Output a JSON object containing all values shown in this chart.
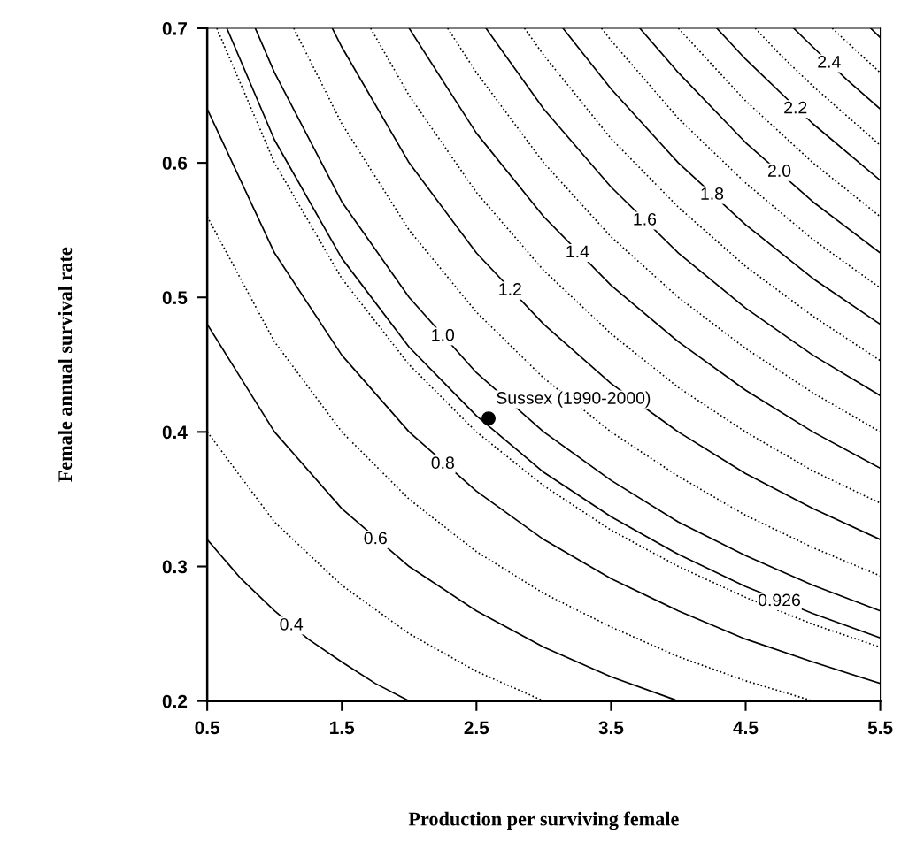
{
  "chart_data": {
    "type": "line",
    "xlabel": "Production per surviving female",
    "ylabel": "Female annual survival rate",
    "xlim": [
      0.5,
      5.5
    ],
    "xticks": [
      0.5,
      1.5,
      2.5,
      3.5,
      4.5,
      5.5
    ],
    "ylim": [
      0.2,
      0.7
    ],
    "yticks": [
      0.2,
      0.3,
      0.4,
      0.5,
      0.6,
      0.7
    ],
    "grid": false,
    "series": [
      {
        "color": "#000000",
        "line_style": "solid",
        "x": [
          0.5,
          0.75,
          1,
          1.25,
          1.5,
          1.75,
          2
        ],
        "values": [
          0.32,
          0.291,
          0.267,
          0.246,
          0.229,
          0.213,
          0.2
        ]
      },
      {
        "color": "#000000",
        "line_style": "dotted",
        "x": [
          0.5,
          1,
          1.5,
          2,
          2.5,
          3
        ],
        "values": [
          0.4,
          0.333,
          0.286,
          0.25,
          0.222,
          0.2
        ]
      },
      {
        "color": "#000000",
        "line_style": "solid",
        "x": [
          0.5,
          1,
          1.5,
          2,
          2.5,
          3,
          3.5,
          4
        ],
        "values": [
          0.48,
          0.4,
          0.343,
          0.3,
          0.267,
          0.24,
          0.218,
          0.2
        ]
      },
      {
        "color": "#000000",
        "line_style": "dotted",
        "x": [
          0.5,
          1,
          1.5,
          2,
          2.5,
          3,
          3.5,
          4,
          4.5,
          5
        ],
        "values": [
          0.56,
          0.467,
          0.4,
          0.35,
          0.311,
          0.28,
          0.255,
          0.233,
          0.215,
          0.2
        ]
      },
      {
        "color": "#000000",
        "line_style": "solid",
        "x": [
          0.5,
          1,
          1.5,
          2,
          2.5,
          3,
          3.5,
          4,
          4.5,
          5,
          5.5
        ],
        "values": [
          0.64,
          0.533,
          0.457,
          0.4,
          0.356,
          0.32,
          0.291,
          0.267,
          0.246,
          0.229,
          0.213
        ]
      },
      {
        "color": "#000000",
        "line_style": "dotted",
        "x": [
          0.571,
          1,
          1.5,
          2,
          2.5,
          3,
          3.5,
          4,
          4.5,
          5,
          5.5
        ],
        "values": [
          0.7,
          0.6,
          0.514,
          0.45,
          0.4,
          0.36,
          0.327,
          0.3,
          0.277,
          0.257,
          0.24
        ]
      },
      {
        "color": "#000000",
        "line_style": "solid",
        "x": [
          0.646,
          1,
          1.5,
          2,
          2.5,
          3,
          3.5,
          4,
          4.5,
          5,
          5.5
        ],
        "values": [
          0.7,
          0.617,
          0.529,
          0.463,
          0.412,
          0.37,
          0.337,
          0.309,
          0.285,
          0.265,
          0.247
        ]
      },
      {
        "color": "#000000",
        "line_style": "solid",
        "x": [
          0.857,
          1,
          1.5,
          2,
          2.5,
          3,
          3.5,
          4,
          4.5,
          5,
          5.5
        ],
        "values": [
          0.7,
          0.667,
          0.571,
          0.5,
          0.444,
          0.4,
          0.364,
          0.333,
          0.308,
          0.286,
          0.267
        ]
      },
      {
        "color": "#000000",
        "line_style": "dotted",
        "x": [
          1.143,
          1.5,
          2,
          2.5,
          3,
          3.5,
          4,
          4.5,
          5,
          5.5
        ],
        "values": [
          0.7,
          0.629,
          0.55,
          0.489,
          0.44,
          0.4,
          0.367,
          0.338,
          0.314,
          0.293
        ]
      },
      {
        "color": "#000000",
        "line_style": "solid",
        "x": [
          1.429,
          1.5,
          2,
          2.5,
          3,
          3.5,
          4,
          4.5,
          5,
          5.5
        ],
        "values": [
          0.7,
          0.686,
          0.6,
          0.533,
          0.48,
          0.436,
          0.4,
          0.369,
          0.343,
          0.32
        ]
      },
      {
        "color": "#000000",
        "line_style": "dotted",
        "x": [
          1.714,
          2,
          2.5,
          3,
          3.5,
          4,
          4.5,
          5,
          5.5
        ],
        "values": [
          0.7,
          0.65,
          0.578,
          0.52,
          0.473,
          0.433,
          0.4,
          0.371,
          0.347
        ]
      },
      {
        "color": "#000000",
        "line_style": "solid",
        "x": [
          2,
          2.5,
          3,
          3.5,
          4,
          4.5,
          5,
          5.5
        ],
        "values": [
          0.7,
          0.622,
          0.56,
          0.509,
          0.467,
          0.431,
          0.4,
          0.373
        ]
      },
      {
        "color": "#000000",
        "line_style": "dotted",
        "x": [
          2.286,
          2.5,
          3,
          3.5,
          4,
          4.5,
          5,
          5.5
        ],
        "values": [
          0.7,
          0.667,
          0.6,
          0.545,
          0.5,
          0.462,
          0.429,
          0.4
        ]
      },
      {
        "color": "#000000",
        "line_style": "solid",
        "x": [
          2.571,
          3,
          3.5,
          4,
          4.5,
          5,
          5.5
        ],
        "values": [
          0.7,
          0.64,
          0.582,
          0.533,
          0.492,
          0.457,
          0.427
        ]
      },
      {
        "color": "#000000",
        "line_style": "dotted",
        "x": [
          2.857,
          3,
          3.5,
          4,
          4.5,
          5,
          5.5
        ],
        "values": [
          0.7,
          0.68,
          0.618,
          0.567,
          0.523,
          0.486,
          0.453
        ]
      },
      {
        "color": "#000000",
        "line_style": "solid",
        "x": [
          3.143,
          3.5,
          4,
          4.5,
          5,
          5.5
        ],
        "values": [
          0.7,
          0.655,
          0.6,
          0.554,
          0.514,
          0.48
        ]
      },
      {
        "color": "#000000",
        "line_style": "dotted",
        "x": [
          3.429,
          3.5,
          4,
          4.5,
          5,
          5.5
        ],
        "values": [
          0.7,
          0.691,
          0.633,
          0.585,
          0.543,
          0.507
        ]
      },
      {
        "color": "#000000",
        "line_style": "solid",
        "x": [
          3.714,
          4,
          4.5,
          5,
          5.5
        ],
        "values": [
          0.7,
          0.667,
          0.615,
          0.571,
          0.533
        ]
      },
      {
        "color": "#000000",
        "line_style": "dotted",
        "x": [
          4,
          4.5,
          5,
          5.5
        ],
        "values": [
          0.7,
          0.646,
          0.6,
          0.56
        ]
      },
      {
        "color": "#000000",
        "line_style": "solid",
        "x": [
          4.286,
          4.5,
          5,
          5.5
        ],
        "values": [
          0.7,
          0.677,
          0.629,
          0.587
        ]
      },
      {
        "color": "#000000",
        "line_style": "dotted",
        "x": [
          4.571,
          4.75,
          5,
          5.5
        ],
        "values": [
          0.7,
          0.681,
          0.657,
          0.613
        ]
      },
      {
        "color": "#000000",
        "line_style": "solid",
        "x": [
          4.857,
          5,
          5.25,
          5.5
        ],
        "values": [
          0.7,
          0.686,
          0.662,
          0.64
        ]
      },
      {
        "color": "#000000",
        "line_style": "dotted",
        "x": [
          5.143,
          5.25,
          5.5
        ],
        "values": [
          0.7,
          0.69,
          0.667
        ]
      },
      {
        "color": "#000000",
        "line_style": "solid",
        "x": [
          5.429,
          5.5
        ],
        "values": [
          0.7,
          0.693
        ]
      },
      {
        "type": "scatter",
        "marker": "circle",
        "color": "#000000",
        "x": [
          2.59
        ],
        "values": [
          0.41
        ]
      }
    ],
    "annotations": [
      {
        "text": "0.4",
        "x": 1.125,
        "y": 0.256
      },
      {
        "text": "0.6",
        "x": 1.75,
        "y": 0.32
      },
      {
        "text": "0.8",
        "x": 2.25,
        "y": 0.376
      },
      {
        "text": "1.0",
        "x": 2.25,
        "y": 0.471
      },
      {
        "text": "1.2",
        "x": 2.75,
        "y": 0.505
      },
      {
        "text": "1.4",
        "x": 3.25,
        "y": 0.533
      },
      {
        "text": "1.6",
        "x": 3.75,
        "y": 0.557
      },
      {
        "text": "1.8",
        "x": 4.25,
        "y": 0.576
      },
      {
        "text": "2.0",
        "x": 4.75,
        "y": 0.593
      },
      {
        "text": "2.2",
        "x": 4.87,
        "y": 0.64
      },
      {
        "text": "2.4",
        "x": 5.12,
        "y": 0.674
      },
      {
        "text": "0.926",
        "x": 4.75,
        "y": 0.274
      },
      {
        "text": "Sussex (1990-2000)",
        "x": 2.59,
        "y": 0.41
      }
    ]
  }
}
